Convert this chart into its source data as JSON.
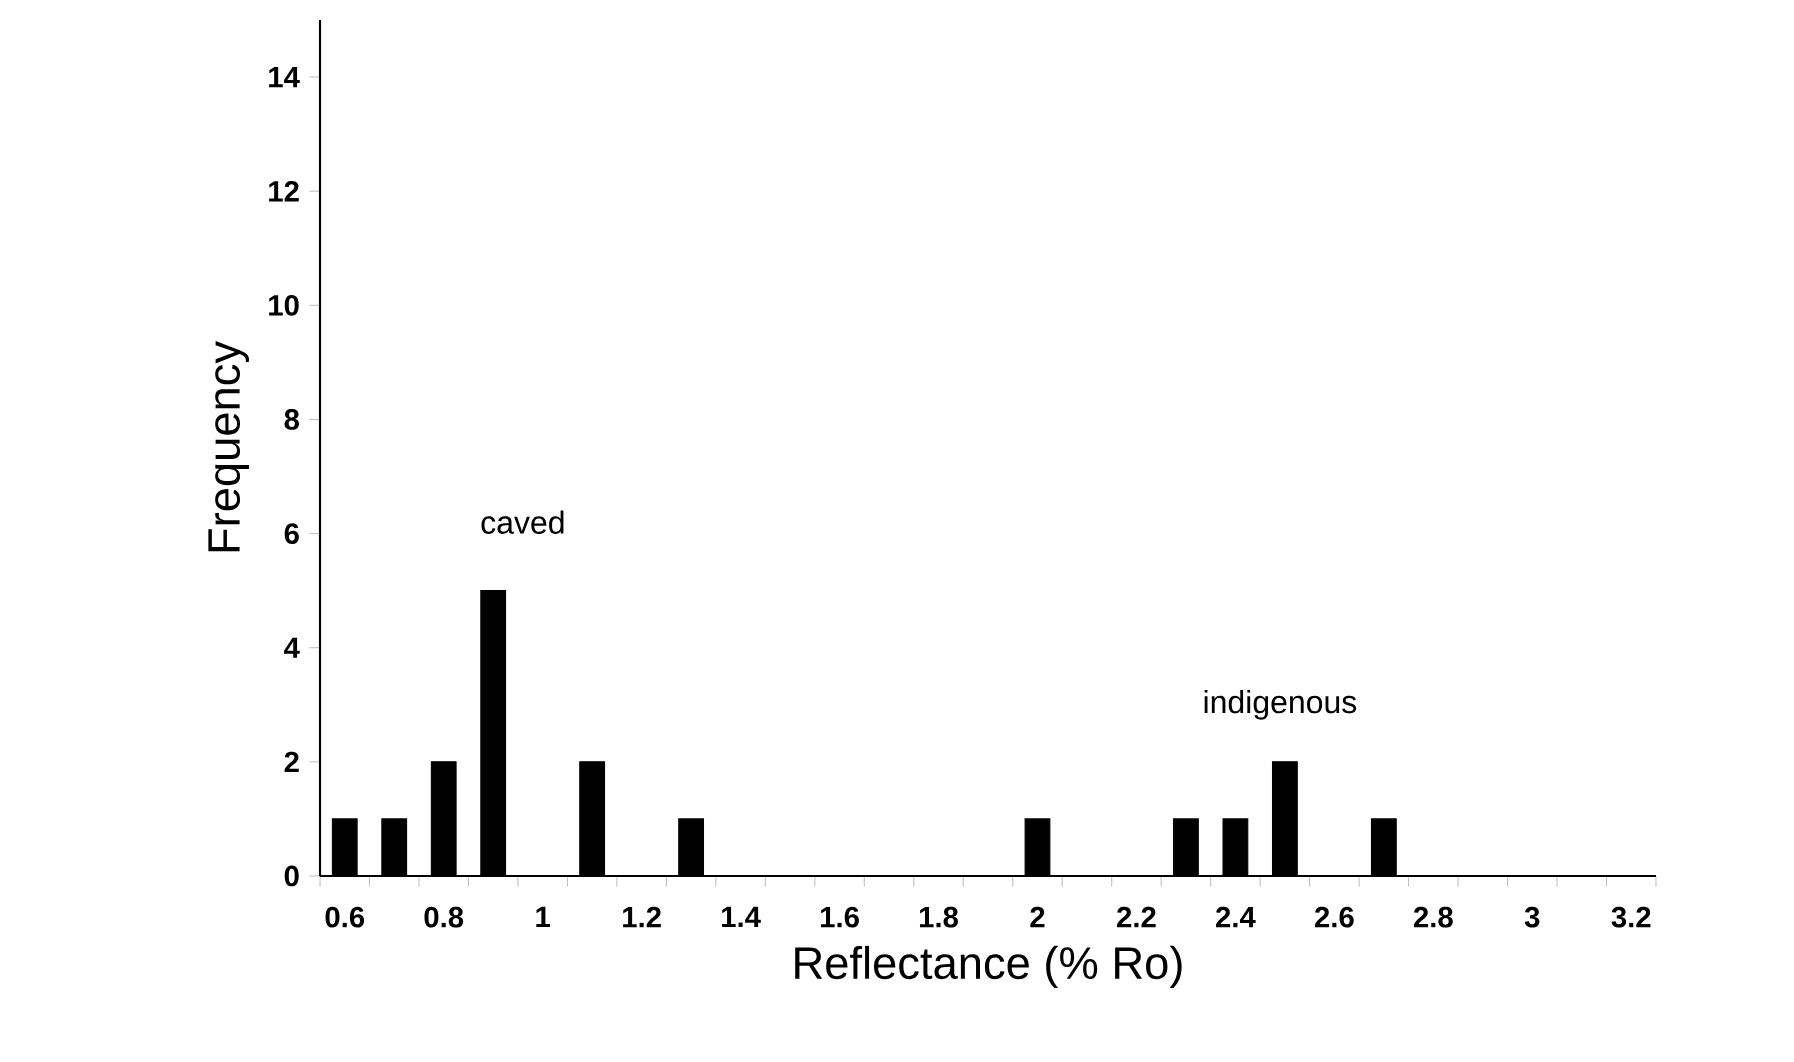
{
  "chart_data": {
    "type": "bar",
    "xlabel": "Reflectance  (% Ro)",
    "ylabel": "Frequency",
    "categories": [
      "0.6",
      null,
      "0.8",
      null,
      "1",
      null,
      "1.2",
      null,
      "1.4",
      null,
      "1.6",
      null,
      "1.8",
      null,
      "2",
      null,
      "2.2",
      null,
      "2.4",
      null,
      "2.6",
      null,
      "2.8",
      null,
      "3",
      null,
      "3.2"
    ],
    "values": [
      1,
      1,
      2,
      5,
      0,
      2,
      0,
      1,
      0,
      0,
      0,
      0,
      0,
      0,
      1,
      0,
      0,
      1,
      1,
      2,
      0,
      1,
      0,
      0,
      0,
      0,
      0
    ],
    "color": "#000000",
    "ylim": [
      0,
      15
    ],
    "yticks": [
      0,
      2,
      4,
      6,
      8,
      10,
      12,
      14
    ],
    "grid": false,
    "annotations": [
      "caved",
      "indigenous"
    ]
  }
}
